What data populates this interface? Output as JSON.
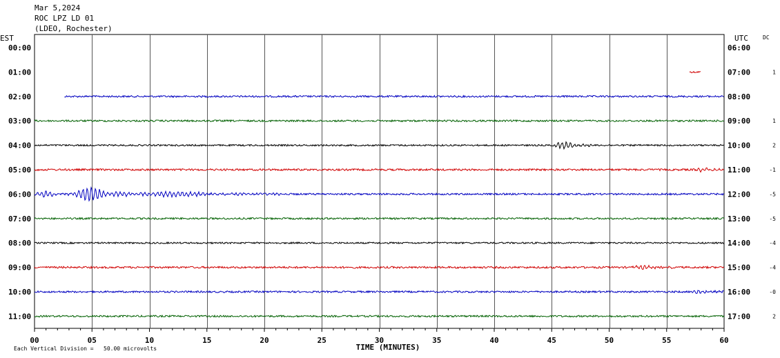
{
  "header": {
    "date": "Mar 5,2024",
    "station": "ROC LPZ LD 01",
    "network": "(LDEO, Rochester)"
  },
  "labels": {
    "left_tz": "EST",
    "right_tz": "UTC",
    "dc": "DC",
    "scale_note": "Each Vertical Division =   50.00 microvolts"
  },
  "colors": {
    "blue": "#0000c0",
    "green": "#006000",
    "black": "#000000",
    "red": "#d00000",
    "grid": "#000000"
  },
  "chart_data": {
    "type": "line",
    "title": "",
    "xlabel": "TIME (MINUTES)",
    "xlim": [
      0,
      60
    ],
    "x_ticks": [
      "00",
      "05",
      "10",
      "15",
      "20",
      "25",
      "30",
      "35",
      "40",
      "45",
      "50",
      "55",
      "60"
    ],
    "rows": [
      {
        "est": "00:00",
        "utc": "06:00",
        "dc": "",
        "color": "blue",
        "start_min": null,
        "end_min": null,
        "amp": 0
      },
      {
        "est": "01:00",
        "utc": "07:00",
        "dc": "1",
        "color": "red",
        "start_min": 57.0,
        "end_min": 58.0,
        "amp": 1.2
      },
      {
        "est": "02:00",
        "utc": "08:00",
        "dc": "",
        "color": "blue",
        "start_min": 2.6,
        "end_min": 60,
        "amp": 1.3
      },
      {
        "est": "03:00",
        "utc": "09:00",
        "dc": "1",
        "color": "green",
        "start_min": 0,
        "end_min": 60,
        "amp": 1.3,
        "events": []
      },
      {
        "est": "04:00",
        "utc": "10:00",
        "dc": "2",
        "color": "black",
        "start_min": 0,
        "end_min": 60,
        "amp": 1.2,
        "events": [
          {
            "start": 45.2,
            "end": 48.5,
            "amp": 5
          }
        ]
      },
      {
        "est": "05:00",
        "utc": "11:00",
        "dc": "-1",
        "color": "red",
        "start_min": 0,
        "end_min": 60,
        "amp": 1.4,
        "events": [
          {
            "start": 57.5,
            "end": 60,
            "amp": 2.5
          }
        ]
      },
      {
        "est": "06:00",
        "utc": "12:00",
        "dc": "-5",
        "color": "blue",
        "start_min": 0,
        "end_min": 60,
        "amp": 1.3,
        "events": [
          {
            "start": 0,
            "end": 3.5,
            "amp": 4
          },
          {
            "start": 3.5,
            "end": 8.5,
            "amp": 10
          },
          {
            "start": 8.5,
            "end": 22,
            "amp": 3.5
          }
        ]
      },
      {
        "est": "07:00",
        "utc": "13:00",
        "dc": "-5",
        "color": "green",
        "start_min": 0,
        "end_min": 60,
        "amp": 1.3,
        "events": []
      },
      {
        "est": "08:00",
        "utc": "14:00",
        "dc": "-4",
        "color": "black",
        "start_min": 0,
        "end_min": 60,
        "amp": 1.2,
        "events": []
      },
      {
        "est": "09:00",
        "utc": "15:00",
        "dc": "-4",
        "color": "red",
        "start_min": 0,
        "end_min": 60,
        "amp": 1.4,
        "events": [
          {
            "start": 52,
            "end": 56,
            "amp": 2.5
          }
        ]
      },
      {
        "est": "10:00",
        "utc": "16:00",
        "dc": "-0",
        "color": "blue",
        "start_min": 0,
        "end_min": 60,
        "amp": 1.3,
        "events": [
          {
            "start": 57,
            "end": 60,
            "amp": 2.5
          }
        ]
      },
      {
        "est": "11:00",
        "utc": "17:00",
        "dc": "2",
        "color": "green",
        "start_min": 0,
        "end_min": 60,
        "amp": 1.3,
        "events": []
      }
    ]
  }
}
